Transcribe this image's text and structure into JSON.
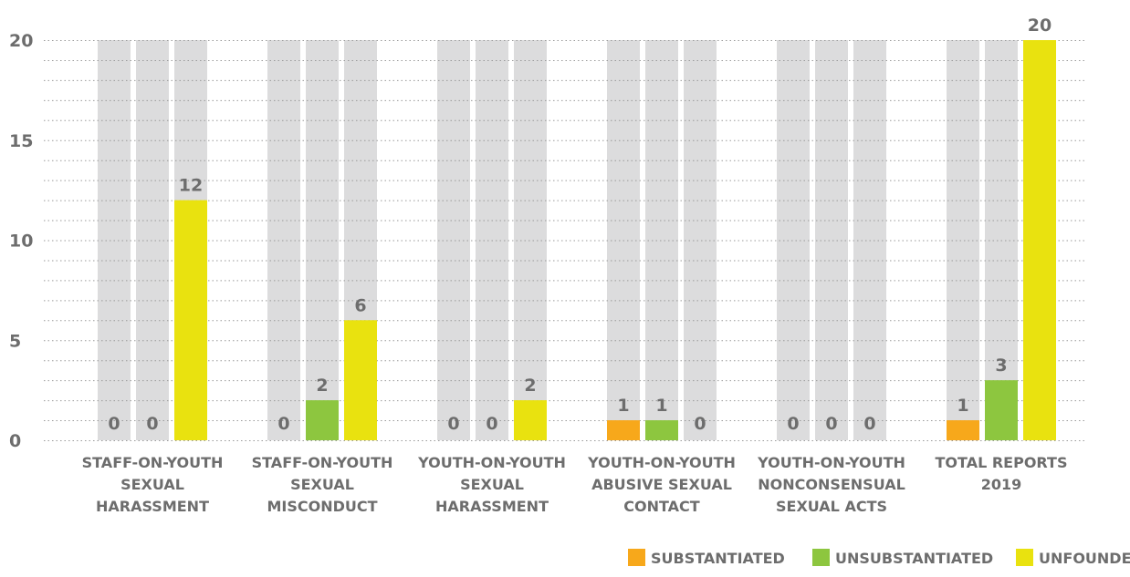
{
  "chart_data": {
    "type": "bar",
    "categories": [
      [
        "STAFF-ON-YOUTH",
        "SEXUAL",
        "HARASSMENT"
      ],
      [
        "STAFF-ON-YOUTH",
        "SEXUAL",
        "MISCONDUCT"
      ],
      [
        "YOUTH-ON-YOUTH",
        "SEXUAL",
        "HARASSMENT"
      ],
      [
        "YOUTH-ON-YOUTH",
        "ABUSIVE SEXUAL",
        "CONTACT"
      ],
      [
        "YOUTH-ON-YOUTH",
        "NONCONSENSUAL",
        "SEXUAL ACTS"
      ],
      [
        "TOTAL REPORTS",
        "2019"
      ]
    ],
    "series": [
      {
        "name": "SUBSTANTIATED",
        "color": "#f7a81b",
        "values": [
          0,
          0,
          0,
          1,
          0,
          1
        ]
      },
      {
        "name": "UNSUBSTANTIATED",
        "color": "#8dc63f",
        "values": [
          0,
          2,
          0,
          1,
          0,
          3
        ]
      },
      {
        "name": "UNFOUNDED",
        "color": "#e9e20f",
        "values": [
          12,
          6,
          2,
          0,
          0,
          20
        ]
      }
    ],
    "ylim": [
      0,
      20
    ],
    "yticks": [
      0,
      5,
      10,
      15,
      20
    ],
    "minor_grid_step": 1,
    "background_bar_color": "#dcdcdd",
    "grid": true,
    "legend_position": "bottom-right"
  }
}
